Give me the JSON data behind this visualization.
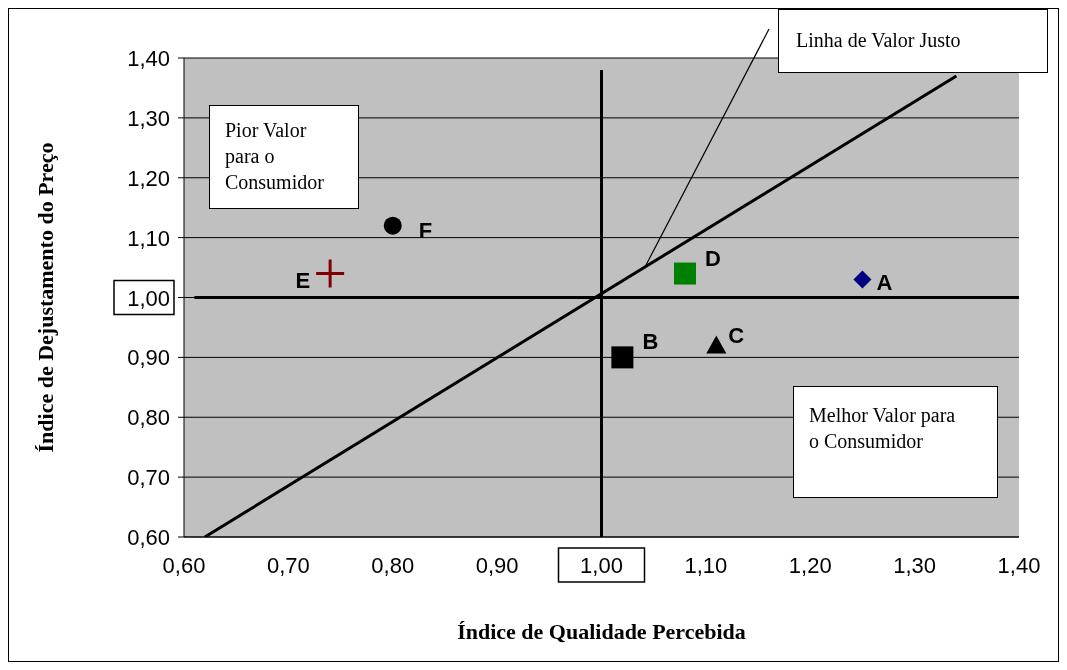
{
  "chart_data": {
    "type": "scatter",
    "xlabel": "Índice de Qualidade Percebida",
    "ylabel": "Índice de Dejustamento do Preço",
    "xlim": [
      0.6,
      1.4
    ],
    "ylim": [
      0.6,
      1.4
    ],
    "xticks": [
      {
        "value": 0.6,
        "label": "0,60"
      },
      {
        "value": 0.7,
        "label": "0,70"
      },
      {
        "value": 0.8,
        "label": "0,80"
      },
      {
        "value": 0.9,
        "label": "0,90"
      },
      {
        "value": 1.0,
        "label": "1,00"
      },
      {
        "value": 1.1,
        "label": "1,10"
      },
      {
        "value": 1.2,
        "label": "1,20"
      },
      {
        "value": 1.3,
        "label": "1,30"
      },
      {
        "value": 1.4,
        "label": "1,40"
      }
    ],
    "yticks": [
      {
        "value": 0.6,
        "label": "0,60"
      },
      {
        "value": 0.7,
        "label": "0,70"
      },
      {
        "value": 0.8,
        "label": "0,80"
      },
      {
        "value": 0.9,
        "label": "0,90"
      },
      {
        "value": 1.0,
        "label": "1,00"
      },
      {
        "value": 1.1,
        "label": "1,10"
      },
      {
        "value": 1.2,
        "label": "1,20"
      },
      {
        "value": 1.3,
        "label": "1,30"
      },
      {
        "value": 1.4,
        "label": "1,40"
      }
    ],
    "grid": "y",
    "legend": false,
    "series": [
      {
        "name": "A",
        "x": [
          1.25
        ],
        "values": [
          1.03
        ],
        "color": "#000080",
        "marker": "diamond"
      },
      {
        "name": "B",
        "x": [
          1.02
        ],
        "values": [
          0.9
        ],
        "color": "#000000",
        "marker": "square"
      },
      {
        "name": "C",
        "x": [
          1.11
        ],
        "values": [
          0.92
        ],
        "color": "#000000",
        "marker": "triangle"
      },
      {
        "name": "D",
        "x": [
          1.08
        ],
        "values": [
          1.04
        ],
        "color": "#008000",
        "marker": "square"
      },
      {
        "name": "E",
        "x": [
          0.74
        ],
        "values": [
          1.04
        ],
        "color": "#800000",
        "marker": "cross"
      },
      {
        "name": "F",
        "x": [
          0.8
        ],
        "values": [
          1.12
        ],
        "color": "#000000",
        "marker": "circle"
      },
      {
        "type": "line",
        "x": [
          0.62,
          1.34
        ],
        "values": [
          0.6,
          1.37
        ],
        "color": "#000000"
      },
      {
        "type": "line",
        "x": [
          0.61,
          1.4
        ],
        "values": [
          1.0,
          1.0
        ],
        "color": "#000000"
      },
      {
        "type": "line",
        "x": [
          1.0,
          1.0
        ],
        "values": [
          0.6,
          1.38
        ],
        "color": "#000000"
      }
    ],
    "annotations": [
      "Linha de Valor Justo",
      "Pior Valor para o Consumidor",
      "Melhor Valor para o Consumidor"
    ]
  }
}
